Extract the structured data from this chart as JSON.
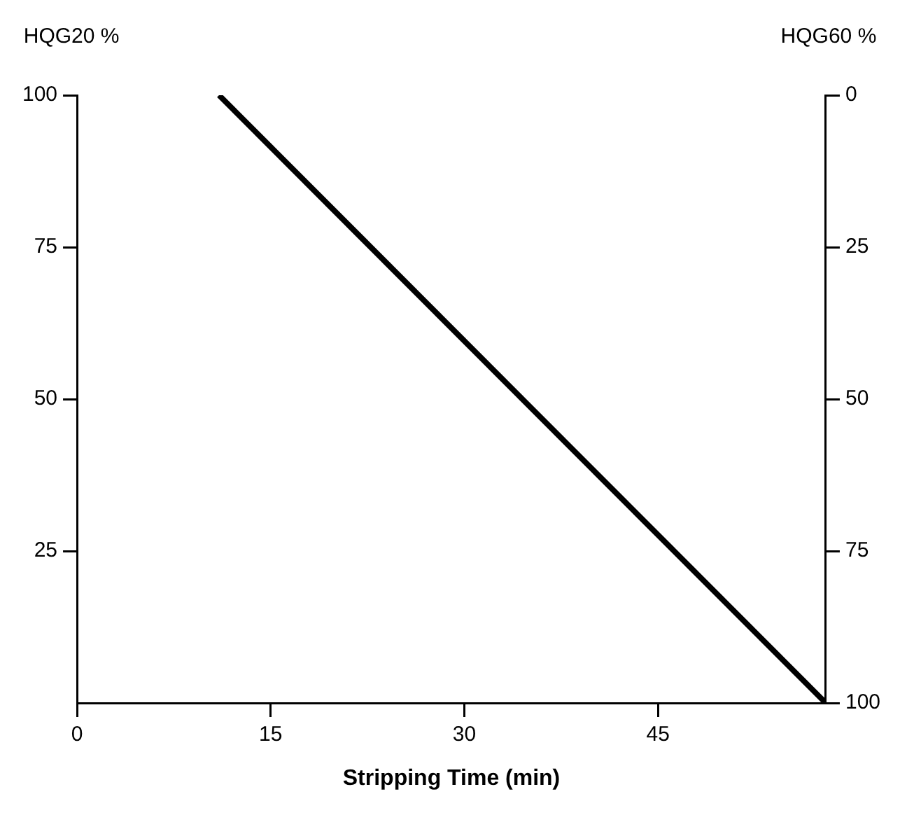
{
  "chart_data": {
    "type": "line",
    "xlabel": "Stripping Time (min)",
    "ylabel": "HQG20 %",
    "y2label": "HQG60 %",
    "x": [
      11,
      58
    ],
    "series": [
      {
        "color": "#000000",
        "values": [
          100,
          0
        ]
      }
    ],
    "xlim": [
      0,
      58
    ],
    "xticks": [
      0,
      15,
      30,
      45
    ],
    "ylim": [
      0,
      100
    ],
    "yticks": [
      25,
      50,
      75,
      100
    ],
    "y2lim": [
      100,
      0
    ],
    "y2ticks": [
      0,
      25,
      50,
      75,
      100
    ],
    "grid": false,
    "marker": "none",
    "line_style": "solid"
  }
}
